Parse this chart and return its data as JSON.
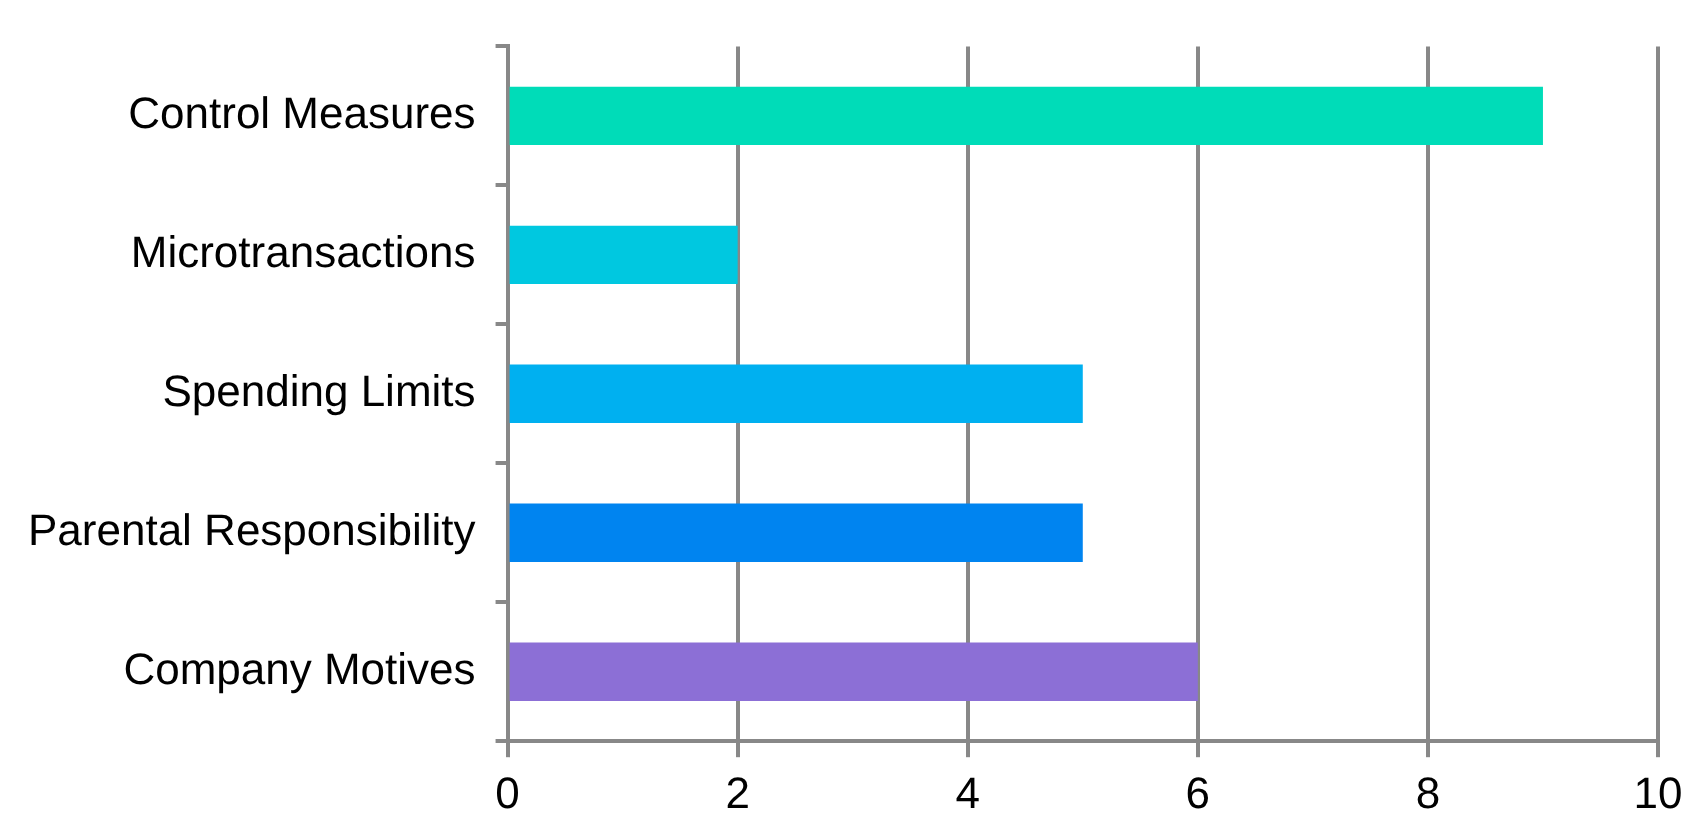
{
  "chart_data": {
    "type": "bar",
    "orientation": "horizontal",
    "categories": [
      "Control Measures",
      "Microtransactions",
      "Spending Limits",
      "Parental Responsibility",
      "Company Motives"
    ],
    "values": [
      9,
      2,
      5,
      5,
      6
    ],
    "colors": [
      "#00dcb8",
      "#00c8e0",
      "#00b0f0",
      "#0084f0",
      "#8c6fd6"
    ],
    "xlim": [
      0,
      10
    ],
    "xticks": [
      0,
      2,
      4,
      6,
      8,
      10
    ],
    "grid": "x",
    "legend": false
  }
}
